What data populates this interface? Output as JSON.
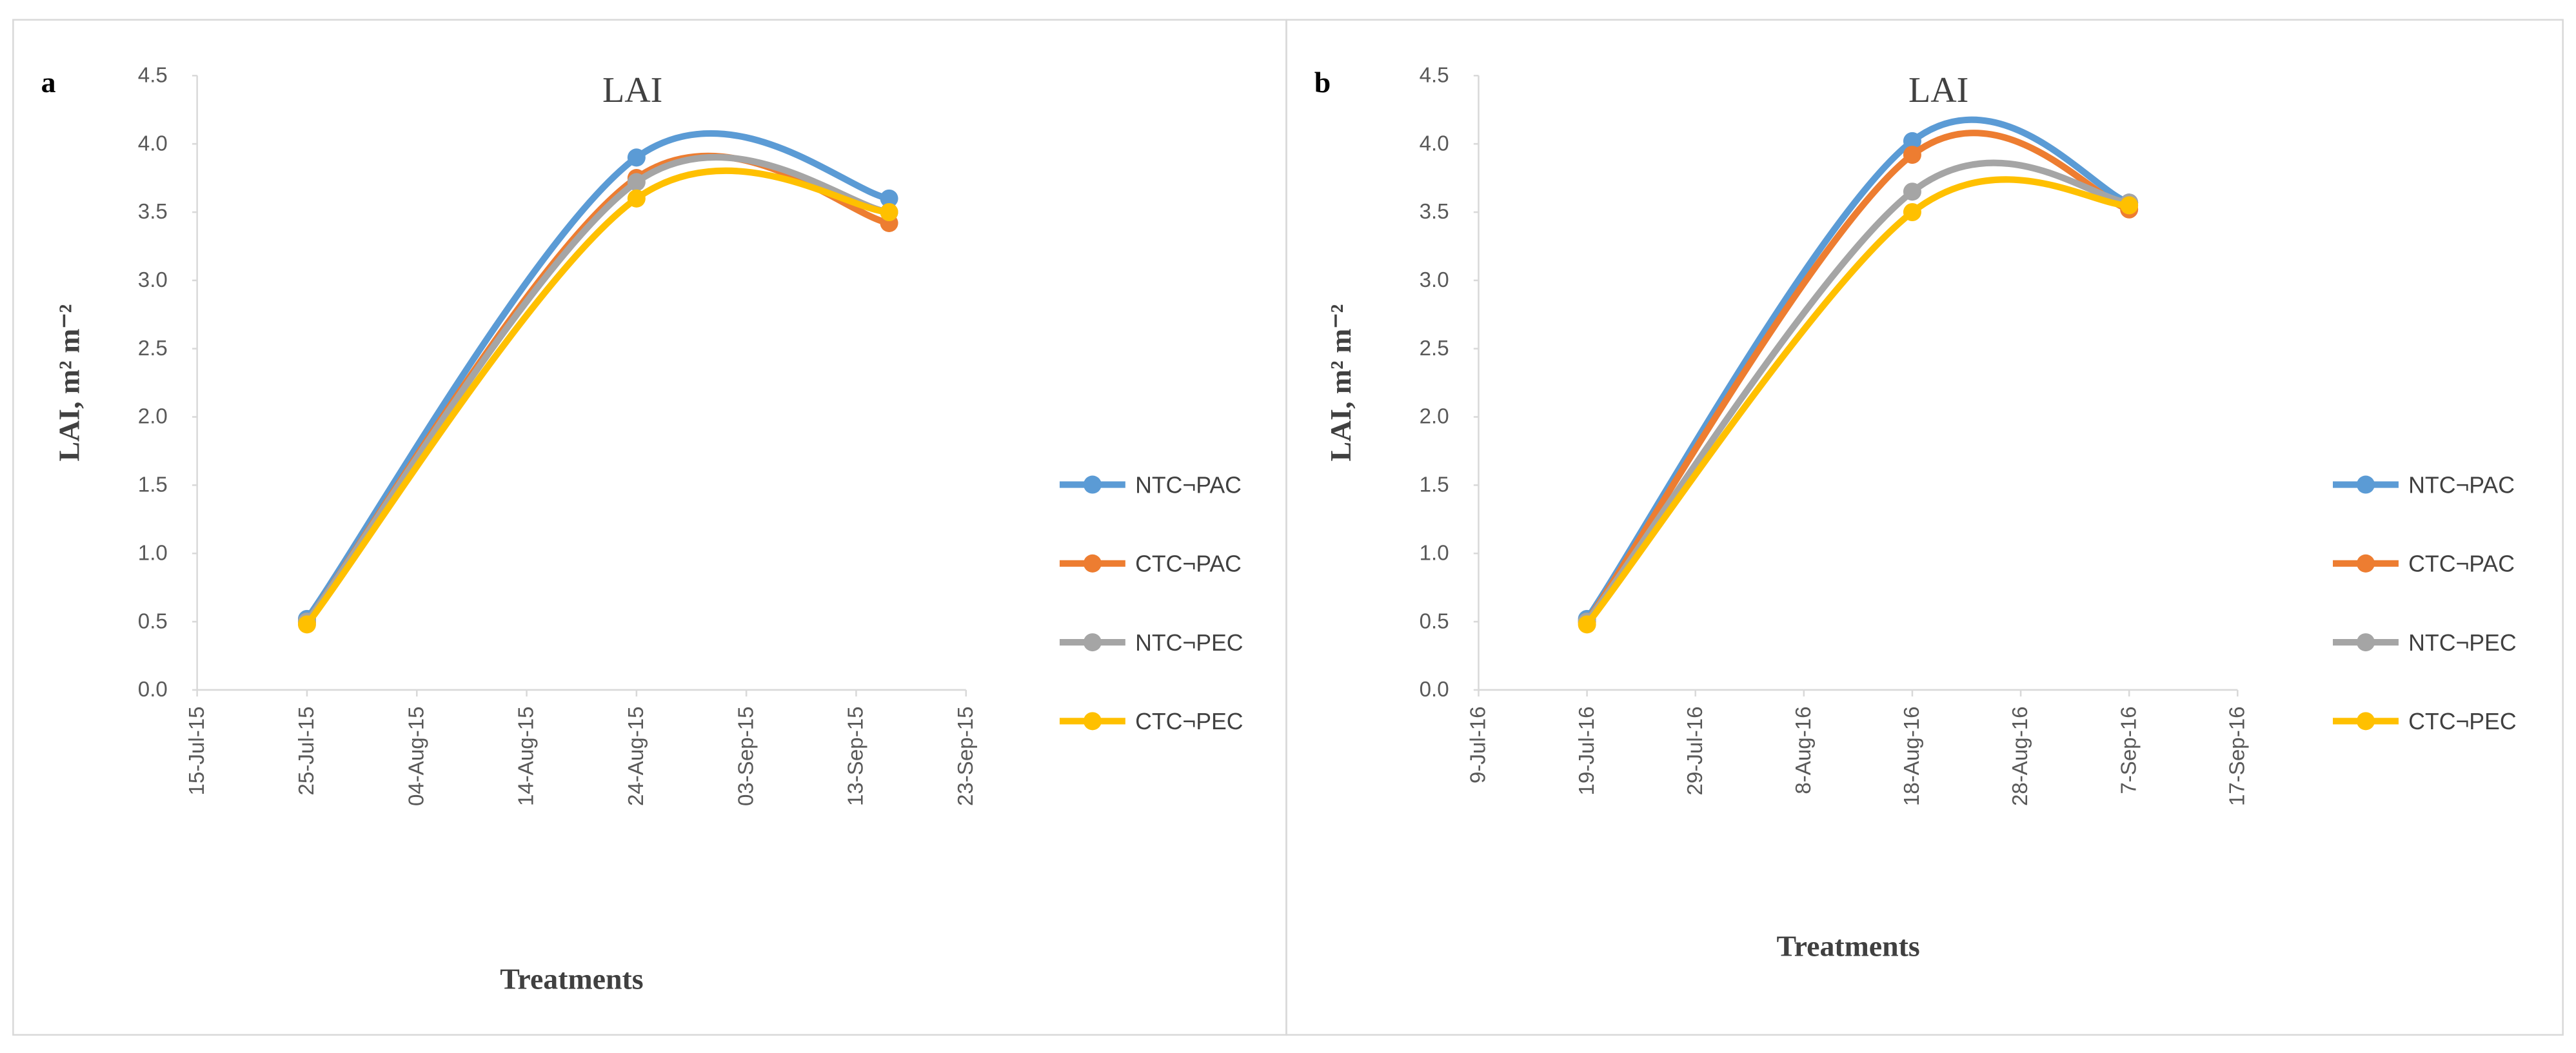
{
  "chart_data": [
    {
      "type": "line",
      "label": "a",
      "title": "LAI",
      "y_label": "LAI, m² m⁻²",
      "x_label": "Treatments",
      "x": [
        "2015-07-25",
        "2015-08-24",
        "2015-09-16"
      ],
      "xlim": [
        "2015-07-15",
        "2015-09-23"
      ],
      "xticks": [
        {
          "value": "2015-07-15",
          "label": "15-Jul-15"
        },
        {
          "value": "2015-07-25",
          "label": "25-Jul-15"
        },
        {
          "value": "2015-08-04",
          "label": "04-Aug-15"
        },
        {
          "value": "2015-08-14",
          "label": "14-Aug-15"
        },
        {
          "value": "2015-08-24",
          "label": "24-Aug-15"
        },
        {
          "value": "2015-09-03",
          "label": "03-Sep-15"
        },
        {
          "value": "2015-09-13",
          "label": "13-Sep-15"
        },
        {
          "value": "2015-09-23",
          "label": "23-Sep-15"
        }
      ],
      "ylim": [
        0,
        4.5
      ],
      "yticks": [
        {
          "value": 0,
          "label": "0.0"
        },
        0.5,
        {
          "value": 1,
          "label": "1.0"
        },
        1.5,
        {
          "value": 2,
          "label": "2.0"
        },
        2.5,
        {
          "value": 3,
          "label": "3.0"
        },
        3.5,
        {
          "value": 4,
          "label": "4.0"
        },
        4.5
      ],
      "legend": "right",
      "series": [
        {
          "name": "NTC¬PAC",
          "color": "#5b9bd5",
          "values": [
            0.52,
            3.9,
            3.6
          ]
        },
        {
          "name": "CTC¬PAC",
          "color": "#ed7d31",
          "values": [
            0.5,
            3.75,
            3.42
          ]
        },
        {
          "name": "NTC¬PEC",
          "color": "#a5a5a5",
          "values": [
            0.5,
            3.72,
            3.5
          ]
        },
        {
          "name": "CTC¬PEC",
          "color": "#ffc000",
          "values": [
            0.48,
            3.6,
            3.5
          ]
        }
      ]
    },
    {
      "type": "line",
      "label": "b",
      "title": "LAI",
      "y_label": "LAI, m² m⁻²",
      "x_label": "Treatments",
      "x": [
        "2016-07-19",
        "2016-08-18",
        "2016-09-07"
      ],
      "xlim": [
        "2016-07-09",
        "2016-09-17"
      ],
      "xticks": [
        {
          "value": "2016-07-09",
          "label": "9-Jul-16"
        },
        {
          "value": "2016-07-19",
          "label": "19-Jul-16"
        },
        {
          "value": "2016-07-29",
          "label": "29-Jul-16"
        },
        {
          "value": "2016-08-08",
          "label": "8-Aug-16"
        },
        {
          "value": "2016-08-18",
          "label": "18-Aug-16"
        },
        {
          "value": "2016-08-28",
          "label": "28-Aug-16"
        },
        {
          "value": "2016-09-07",
          "label": "7-Sep-16"
        },
        {
          "value": "2016-09-17",
          "label": "17-Sep-16"
        }
      ],
      "ylim": [
        0,
        4.5
      ],
      "yticks": [
        {
          "value": 0,
          "label": "0.0"
        },
        0.5,
        {
          "value": 1,
          "label": "1.0"
        },
        1.5,
        {
          "value": 2,
          "label": "2.0"
        },
        2.5,
        {
          "value": 3,
          "label": "3.0"
        },
        3.5,
        {
          "value": 4,
          "label": "4.0"
        },
        4.5
      ],
      "legend": "right",
      "series": [
        {
          "name": "NTC¬PAC",
          "color": "#5b9bd5",
          "values": [
            0.52,
            4.02,
            3.57
          ]
        },
        {
          "name": "CTC¬PAC",
          "color": "#ed7d31",
          "values": [
            0.5,
            3.92,
            3.52
          ]
        },
        {
          "name": "NTC¬PEC",
          "color": "#a5a5a5",
          "values": [
            0.5,
            3.65,
            3.57
          ]
        },
        {
          "name": "CTC¬PEC",
          "color": "#ffc000",
          "values": [
            0.48,
            3.5,
            3.55
          ]
        }
      ]
    }
  ]
}
